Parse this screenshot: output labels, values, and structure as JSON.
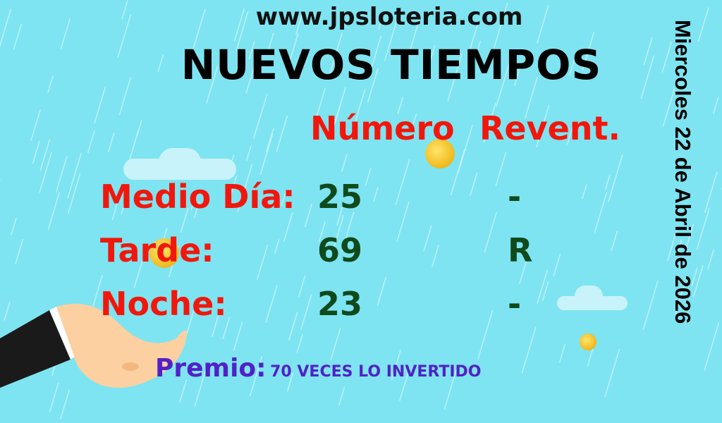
{
  "website": "www.jpsloteria.com",
  "title": "NUEVOS TIEMPOS",
  "headers": {
    "numero": "Número",
    "revent": "Revent."
  },
  "rows": [
    {
      "label": "Medio Día:",
      "numero": "25",
      "revent": "-"
    },
    {
      "label": "Tarde:",
      "numero": "69",
      "revent": "R"
    },
    {
      "label": "Noche:",
      "numero": "23",
      "revent": "-"
    }
  ],
  "date": "Miercoles 22 de Abril de 2026",
  "premio": {
    "label": "Premio:",
    "value": "70 VECES LO INVERTIDO"
  },
  "colors": {
    "background": "#7ee4f1",
    "label_red": "#f1170c",
    "number_green": "#0f4a1c",
    "premio_purple": "#5021c8"
  }
}
